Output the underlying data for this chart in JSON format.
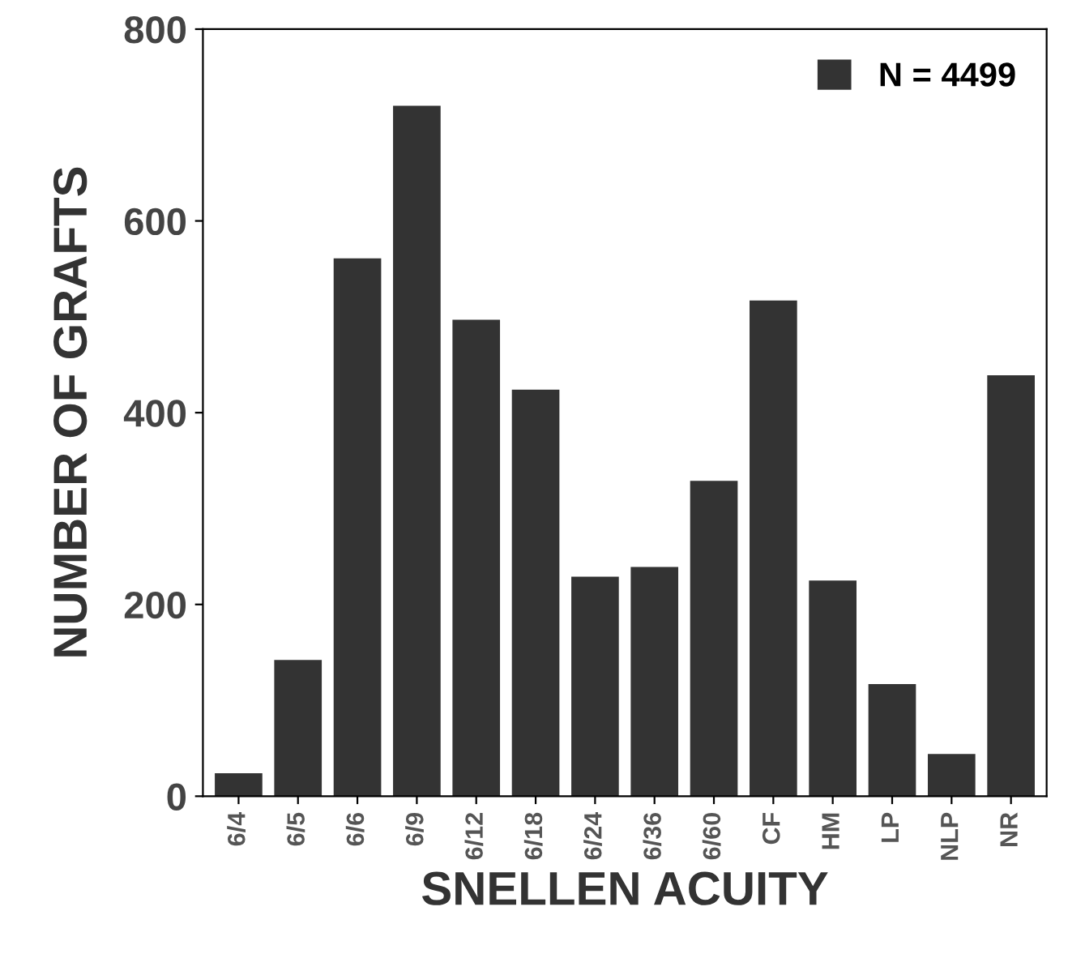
{
  "chart_data": {
    "type": "bar",
    "xlabel": "SNELLEN ACUITY",
    "ylabel": "NUMBER OF GRAFTS",
    "categories": [
      "6/4",
      "6/5",
      "6/6",
      "6/9",
      "6/12",
      "6/18",
      "6/24",
      "6/36",
      "6/60",
      "CF",
      "HM",
      "LP",
      "NLP",
      "NR"
    ],
    "series": [
      {
        "name": "N = 4499",
        "color": "#333333",
        "values": [
          24,
          142,
          561,
          720,
          497,
          424,
          229,
          239,
          329,
          517,
          225,
          117,
          44,
          439
        ]
      }
    ],
    "ylim": [
      0,
      800
    ],
    "yticks": [
      0,
      200,
      400,
      600,
      800
    ],
    "legend": "top right",
    "grid": false
  }
}
